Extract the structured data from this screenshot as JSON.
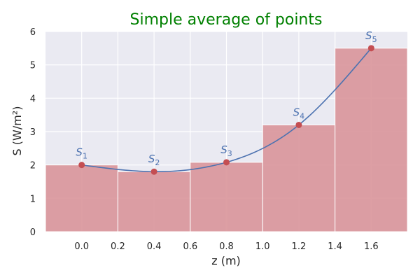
{
  "chart_data": {
    "type": "bar",
    "title": "Simple average of points",
    "xlabel": "z (m)",
    "ylabel": "S (W/m²)",
    "xlim": [
      -0.2,
      1.8
    ],
    "ylim": [
      0,
      6
    ],
    "xticks": [
      "0.0",
      "0.2",
      "0.4",
      "0.6",
      "0.8",
      "1.0",
      "1.2",
      "1.4",
      "1.6"
    ],
    "yticks": [
      "0",
      "1",
      "2",
      "3",
      "4",
      "5",
      "6"
    ],
    "grid": true,
    "bars": [
      {
        "x0": -0.2,
        "x1": 0.2,
        "value": 2.0
      },
      {
        "x0": 0.2,
        "x1": 0.6,
        "value": 1.8
      },
      {
        "x0": 0.6,
        "x1": 1.0,
        "value": 2.08
      },
      {
        "x0": 1.0,
        "x1": 1.4,
        "value": 3.2
      },
      {
        "x0": 1.4,
        "x1": 1.8,
        "value": 5.5
      }
    ],
    "points": [
      {
        "label": "S",
        "sub": "1",
        "x": 0.0,
        "y": 2.0
      },
      {
        "label": "S",
        "sub": "2",
        "x": 0.4,
        "y": 1.8
      },
      {
        "label": "S",
        "sub": "3",
        "x": 0.8,
        "y": 2.08
      },
      {
        "label": "S",
        "sub": "4",
        "x": 1.2,
        "y": 3.2
      },
      {
        "label": "S",
        "sub": "5",
        "x": 1.6,
        "y": 5.5
      }
    ]
  },
  "colors": {
    "title": "#008000",
    "background": "#EAEAF2",
    "grid": "#FFFFFF",
    "bar": "#D9959A",
    "curve": "#4C72B0",
    "point": "#C44E52",
    "point_label": "#4C72B0"
  }
}
